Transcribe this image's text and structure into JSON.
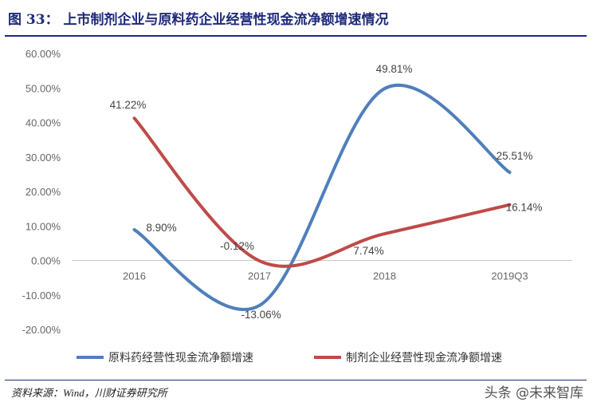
{
  "figure": {
    "title": "图 33：  上市制剂企业与原料药企业经营性现金流净额增速情况",
    "source": "资料来源：Wind，川财证券研究所",
    "watermark": "头条 @未来智库"
  },
  "chart_data": {
    "type": "line",
    "categories": [
      "2016",
      "2017",
      "2018",
      "2019Q3"
    ],
    "y_ticks": [
      "60.00%",
      "50.00%",
      "40.00%",
      "30.00%",
      "20.00%",
      "10.00%",
      "0.00%",
      "-10.00%",
      "-20.00%"
    ],
    "ylim": [
      -20,
      60
    ],
    "grid": false,
    "legend_position": "bottom",
    "series": [
      {
        "name": "原料药经营性现金流净额增速",
        "color": "#4f7fbb",
        "values": [
          8.9,
          -13.06,
          49.81,
          25.51
        ],
        "labels": [
          "8.90%",
          "-13.06%",
          "49.81%",
          "25.51%"
        ]
      },
      {
        "name": "制剂企业经营性现金流净额增速",
        "color": "#be4b48",
        "values": [
          41.22,
          -0.12,
          7.74,
          16.14
        ],
        "labels": [
          "41.22%",
          "-0.12%",
          "7.74%",
          "16.14%"
        ]
      }
    ]
  }
}
